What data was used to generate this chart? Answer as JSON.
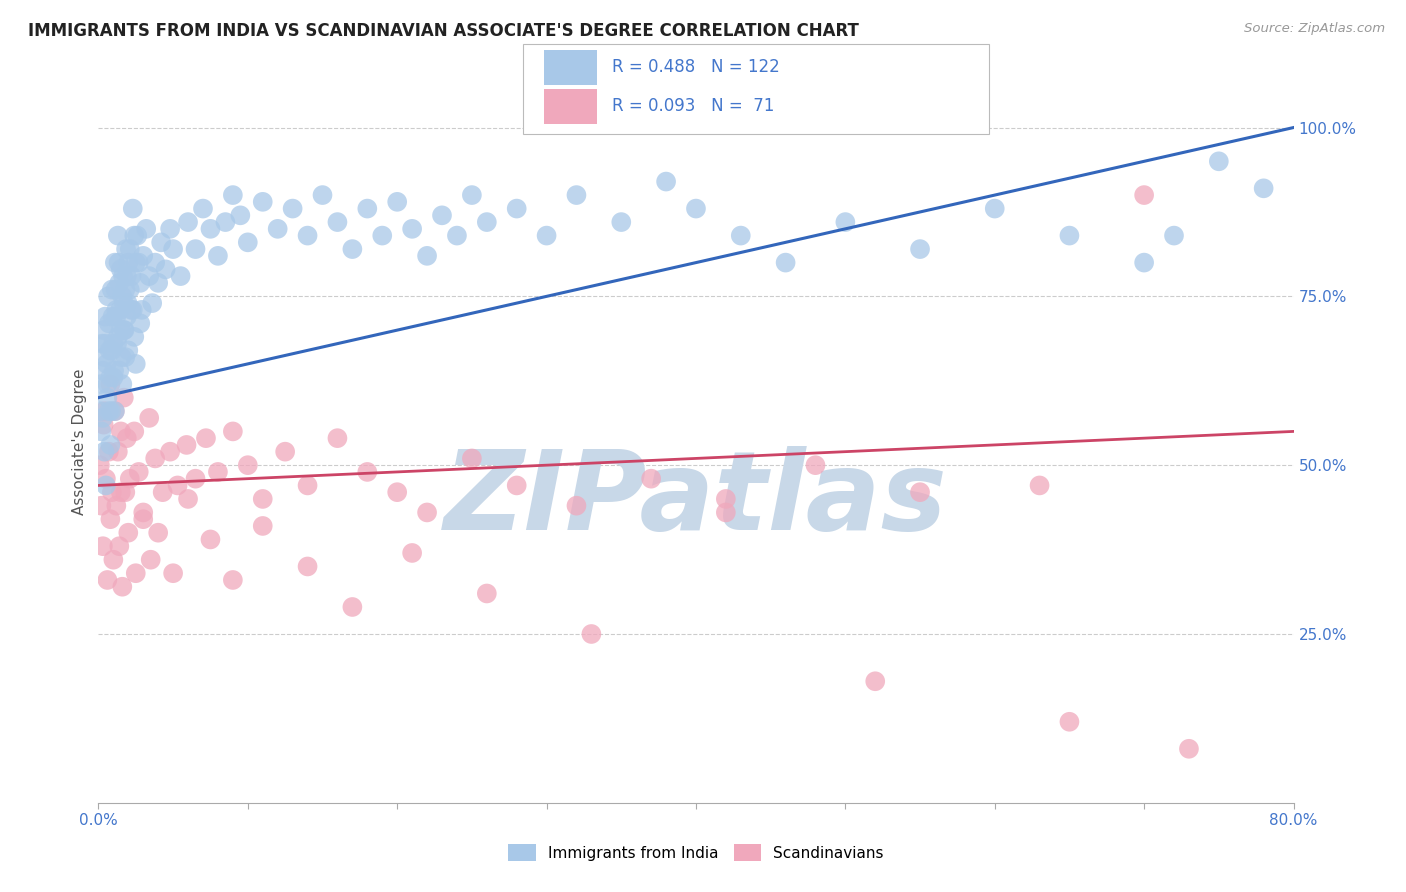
{
  "title": "IMMIGRANTS FROM INDIA VS SCANDINAVIAN ASSOCIATE'S DEGREE CORRELATION CHART",
  "source_text": "Source: ZipAtlas.com",
  "ylabel": "Associate's Degree",
  "xlim": [
    0.0,
    80.0
  ],
  "ylim": [
    0.0,
    107.0
  ],
  "color_blue": "#a8c8e8",
  "color_pink": "#f0a8bc",
  "color_blue_line": "#3366bb",
  "color_pink_line": "#cc4466",
  "color_blue_text": "#4477cc",
  "watermark_text": "ZIPatlas",
  "watermark_color": "#c8d8e8",
  "grid_color": "#cccccc",
  "blue_line_y0": 60.0,
  "blue_line_y1": 100.0,
  "pink_line_y0": 47.0,
  "pink_line_y1": 55.0,
  "india_x": [
    0.1,
    0.15,
    0.2,
    0.25,
    0.3,
    0.35,
    0.4,
    0.45,
    0.5,
    0.55,
    0.6,
    0.65,
    0.7,
    0.75,
    0.8,
    0.85,
    0.9,
    0.95,
    1.0,
    1.05,
    1.1,
    1.15,
    1.2,
    1.25,
    1.3,
    1.35,
    1.4,
    1.45,
    1.5,
    1.55,
    1.6,
    1.65,
    1.7,
    1.75,
    1.8,
    1.85,
    1.9,
    1.95,
    2.0,
    2.1,
    2.2,
    2.3,
    2.4,
    2.5,
    2.6,
    2.7,
    2.8,
    2.9,
    3.0,
    3.2,
    3.4,
    3.6,
    3.8,
    4.0,
    4.2,
    4.5,
    4.8,
    5.0,
    5.5,
    6.0,
    6.5,
    7.0,
    7.5,
    8.0,
    8.5,
    9.0,
    9.5,
    10.0,
    11.0,
    12.0,
    13.0,
    14.0,
    15.0,
    16.0,
    17.0,
    18.0,
    19.0,
    20.0,
    21.0,
    22.0,
    23.0,
    24.0,
    25.0,
    26.0,
    28.0,
    30.0,
    32.0,
    35.0,
    38.0,
    40.0,
    43.0,
    46.0,
    50.0,
    55.0,
    60.0,
    65.0,
    70.0,
    72.0,
    75.0,
    78.0,
    0.3,
    0.4,
    0.5,
    0.6,
    0.7,
    0.8,
    0.9,
    1.0,
    1.1,
    1.2,
    1.3,
    1.4,
    1.5,
    1.6,
    1.7,
    1.8,
    1.9,
    2.0,
    2.1,
    2.2,
    2.3,
    2.4,
    2.5,
    2.8
  ],
  "india_y": [
    58,
    62,
    55,
    68,
    64,
    70,
    66,
    72,
    68,
    65,
    60,
    75,
    71,
    67,
    63,
    58,
    76,
    72,
    68,
    64,
    80,
    76,
    72,
    68,
    84,
    80,
    77,
    73,
    70,
    66,
    62,
    78,
    74,
    70,
    66,
    82,
    78,
    74,
    80,
    76,
    73,
    88,
    84,
    80,
    84,
    80,
    77,
    73,
    81,
    85,
    78,
    74,
    80,
    77,
    83,
    79,
    85,
    82,
    78,
    86,
    82,
    88,
    85,
    81,
    86,
    90,
    87,
    83,
    89,
    85,
    88,
    84,
    90,
    86,
    82,
    88,
    84,
    89,
    85,
    81,
    87,
    84,
    90,
    86,
    88,
    84,
    90,
    86,
    92,
    88,
    84,
    80,
    86,
    82,
    88,
    84,
    80,
    84,
    95,
    91,
    57,
    52,
    47,
    62,
    58,
    53,
    67,
    63,
    58,
    73,
    69,
    64,
    79,
    75,
    70,
    76,
    72,
    67,
    82,
    78,
    73,
    69,
    65,
    71
  ],
  "scand_x": [
    0.1,
    0.2,
    0.35,
    0.5,
    0.7,
    0.9,
    1.1,
    1.3,
    1.5,
    1.7,
    1.9,
    2.1,
    2.4,
    2.7,
    3.0,
    3.4,
    3.8,
    4.3,
    4.8,
    5.3,
    5.9,
    6.5,
    7.2,
    8.0,
    9.0,
    10.0,
    11.0,
    12.5,
    14.0,
    16.0,
    18.0,
    20.0,
    22.0,
    25.0,
    28.0,
    32.0,
    37.0,
    42.0,
    48.0,
    55.0,
    63.0,
    70.0,
    0.3,
    0.6,
    0.8,
    1.0,
    1.2,
    1.4,
    1.6,
    1.8,
    2.0,
    2.5,
    3.0,
    3.5,
    4.0,
    5.0,
    6.0,
    7.5,
    9.0,
    11.0,
    14.0,
    17.0,
    21.0,
    26.0,
    33.0,
    42.0,
    52.0,
    65.0,
    73.0,
    0.4,
    0.8,
    1.5
  ],
  "scand_y": [
    50,
    44,
    56,
    48,
    52,
    46,
    58,
    52,
    46,
    60,
    54,
    48,
    55,
    49,
    43,
    57,
    51,
    46,
    52,
    47,
    53,
    48,
    54,
    49,
    55,
    50,
    45,
    52,
    47,
    54,
    49,
    46,
    43,
    51,
    47,
    44,
    48,
    45,
    50,
    46,
    47,
    90,
    38,
    33,
    42,
    36,
    44,
    38,
    32,
    46,
    40,
    34,
    42,
    36,
    40,
    34,
    45,
    39,
    33,
    41,
    35,
    29,
    37,
    31,
    25,
    43,
    18,
    12,
    8,
    58,
    62,
    55
  ]
}
